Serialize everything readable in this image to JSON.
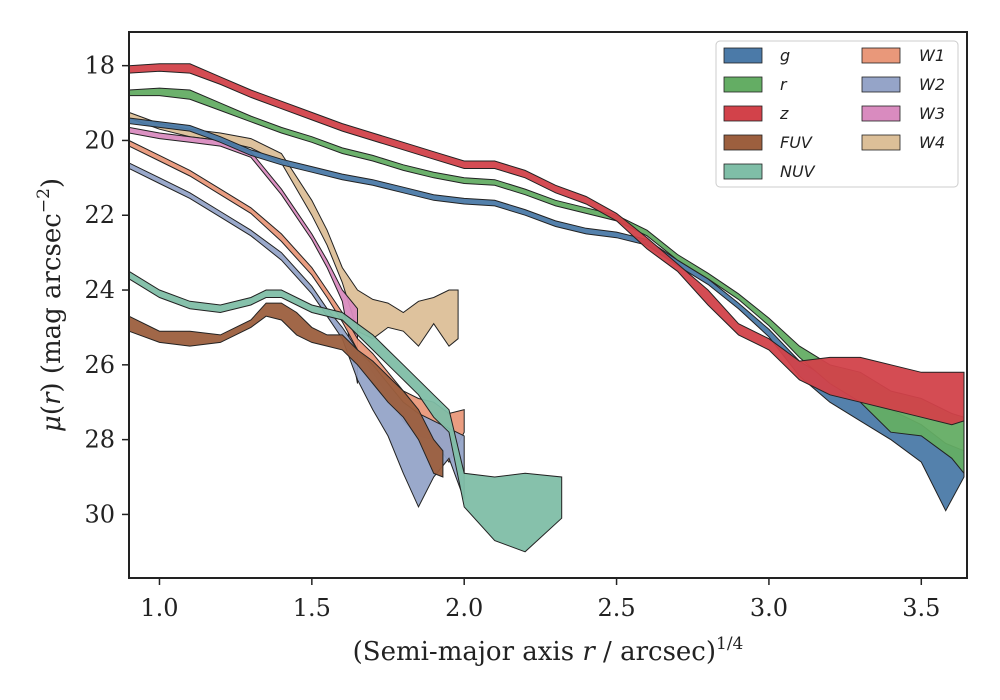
{
  "chart_data": {
    "type": "area",
    "title": "",
    "xlabel": "(Semi-major axis r / arcsec)^1/4",
    "xlabel_parts": {
      "pre": "(Semi-major axis ",
      "var": "r",
      "post": " / arcsec)",
      "sup": "1/4"
    },
    "ylabel": "μ(r) (mag arcsec^−2)",
    "ylabel_parts": {
      "mu": "μ",
      "open": "(",
      "var": "r",
      "close": ") (mag arcsec",
      "sup": "−2",
      "end": ")"
    },
    "xlim": [
      0.9,
      3.65
    ],
    "ylim": [
      31.7,
      17.1
    ],
    "y_inverted": true,
    "xticks": [
      1.0,
      1.5,
      2.0,
      2.5,
      3.0,
      3.5
    ],
    "xtick_labels": [
      "1.0",
      "1.5",
      "2.0",
      "2.5",
      "3.0",
      "3.5"
    ],
    "yticks": [
      18,
      20,
      22,
      24,
      26,
      28,
      30
    ],
    "ytick_labels": [
      "18",
      "20",
      "22",
      "24",
      "26",
      "28",
      "30"
    ],
    "grid": false,
    "legend_placement": "top-right",
    "legend_columns": 2,
    "series": [
      {
        "name": "W4",
        "color": "#dcbf98",
        "x": [
          0.9,
          1.0,
          1.1,
          1.2,
          1.3,
          1.4,
          1.5,
          1.55,
          1.6,
          1.65,
          1.7,
          1.75,
          1.8,
          1.85,
          1.9,
          1.95,
          1.98
        ],
        "y_lo": [
          19.25,
          19.55,
          19.7,
          19.8,
          19.95,
          20.35,
          21.6,
          22.4,
          23.4,
          24.0,
          24.25,
          24.35,
          24.6,
          24.3,
          24.2,
          24.0,
          24.0
        ],
        "y_hi": [
          19.4,
          19.7,
          19.9,
          20.0,
          20.2,
          20.6,
          22.0,
          22.8,
          23.8,
          25.1,
          25.3,
          25.0,
          25.1,
          25.5,
          24.9,
          25.5,
          25.3
        ]
      },
      {
        "name": "W3",
        "color": "#d98bbf",
        "x": [
          0.9,
          1.0,
          1.1,
          1.2,
          1.3,
          1.4,
          1.5,
          1.55,
          1.6,
          1.65
        ],
        "y_lo": [
          19.65,
          19.8,
          19.9,
          20.0,
          20.3,
          21.3,
          22.5,
          23.2,
          24.0,
          24.5
        ],
        "y_hi": [
          19.8,
          19.95,
          20.05,
          20.15,
          20.45,
          21.45,
          22.65,
          23.4,
          24.3,
          26.5
        ]
      },
      {
        "name": "W1",
        "color": "#e9987a",
        "x": [
          0.9,
          1.0,
          1.1,
          1.2,
          1.3,
          1.4,
          1.5,
          1.55,
          1.6,
          1.65,
          1.7,
          1.75,
          1.8,
          1.85,
          1.9,
          1.95,
          2.0
        ],
        "y_lo": [
          20.0,
          20.4,
          20.8,
          21.3,
          21.8,
          22.5,
          23.4,
          24.0,
          24.6,
          25.3,
          25.7,
          26.2,
          26.7,
          26.9,
          27.0,
          27.3,
          27.2
        ],
        "y_hi": [
          20.15,
          20.55,
          20.95,
          21.45,
          21.95,
          22.7,
          23.6,
          24.2,
          24.85,
          25.6,
          26.2,
          26.8,
          27.5,
          27.9,
          28.0,
          28.6,
          27.8
        ]
      },
      {
        "name": "W2",
        "color": "#95a4c8",
        "x": [
          0.9,
          1.0,
          1.1,
          1.2,
          1.3,
          1.4,
          1.5,
          1.55,
          1.6,
          1.65,
          1.7,
          1.75,
          1.8,
          1.85,
          1.9,
          1.95,
          2.0
        ],
        "y_lo": [
          20.6,
          21.0,
          21.4,
          21.9,
          22.4,
          23.0,
          23.9,
          24.5,
          25.0,
          25.6,
          26.0,
          26.5,
          27.0,
          27.3,
          27.5,
          27.7,
          27.9
        ],
        "y_hi": [
          20.75,
          21.15,
          21.55,
          22.05,
          22.55,
          23.2,
          24.1,
          24.7,
          25.3,
          26.4,
          27.2,
          27.9,
          28.9,
          29.8,
          29.0,
          28.5,
          29.6
        ]
      },
      {
        "name": "FUV",
        "color": "#9c5f3e",
        "x": [
          0.9,
          1.0,
          1.1,
          1.2,
          1.3,
          1.35,
          1.4,
          1.45,
          1.5,
          1.55,
          1.6,
          1.65,
          1.7,
          1.75,
          1.8,
          1.85,
          1.9,
          1.93
        ],
        "y_lo": [
          24.7,
          25.1,
          25.1,
          25.2,
          24.8,
          24.35,
          24.35,
          24.6,
          25.0,
          25.2,
          25.2,
          25.6,
          25.9,
          26.3,
          26.7,
          27.2,
          28.0,
          28.3
        ],
        "y_hi": [
          25.1,
          25.4,
          25.5,
          25.4,
          25.0,
          24.7,
          24.8,
          25.2,
          25.4,
          25.5,
          25.6,
          26.0,
          26.5,
          27.0,
          27.4,
          28.0,
          28.9,
          29.0
        ]
      },
      {
        "name": "NUV",
        "color": "#7fbea7",
        "x": [
          0.9,
          1.0,
          1.1,
          1.2,
          1.3,
          1.35,
          1.4,
          1.5,
          1.6,
          1.65,
          1.7,
          1.75,
          1.8,
          1.85,
          1.9,
          1.95,
          2.0,
          2.1,
          2.2,
          2.32
        ],
        "y_lo": [
          23.5,
          24.0,
          24.3,
          24.4,
          24.2,
          24.0,
          24.0,
          24.4,
          24.6,
          24.9,
          25.2,
          25.6,
          26.0,
          26.4,
          26.8,
          27.2,
          28.9,
          29.0,
          28.9,
          29.0
        ],
        "y_hi": [
          23.7,
          24.2,
          24.5,
          24.6,
          24.4,
          24.2,
          24.2,
          24.6,
          24.8,
          25.2,
          25.6,
          26.0,
          26.4,
          26.8,
          27.4,
          27.8,
          29.8,
          30.7,
          31.0,
          30.1
        ]
      },
      {
        "name": "g",
        "color": "#4b7aa8",
        "x": [
          0.9,
          1.0,
          1.1,
          1.2,
          1.3,
          1.4,
          1.5,
          1.6,
          1.7,
          1.8,
          1.9,
          2.0,
          2.1,
          2.2,
          2.3,
          2.4,
          2.5,
          2.6,
          2.7,
          2.8,
          2.9,
          3.0,
          3.1,
          3.2,
          3.3,
          3.4,
          3.5,
          3.58,
          3.64
        ],
        "y_lo": [
          19.4,
          19.5,
          19.6,
          19.9,
          20.25,
          20.5,
          20.7,
          20.9,
          21.05,
          21.25,
          21.45,
          21.55,
          21.6,
          21.85,
          22.15,
          22.35,
          22.45,
          22.65,
          23.2,
          23.7,
          24.35,
          25.05,
          25.9,
          26.4,
          26.8,
          27.2,
          27.6,
          28.1,
          28.3
        ],
        "y_hi": [
          19.55,
          19.65,
          19.75,
          20.05,
          20.4,
          20.65,
          20.85,
          21.05,
          21.2,
          21.4,
          21.6,
          21.7,
          21.75,
          22.0,
          22.3,
          22.5,
          22.6,
          22.8,
          23.35,
          23.85,
          24.5,
          25.25,
          26.3,
          27.0,
          27.5,
          28.0,
          28.6,
          29.9,
          29.0
        ]
      },
      {
        "name": "r",
        "color": "#64ad64",
        "x": [
          0.9,
          1.0,
          1.1,
          1.2,
          1.3,
          1.4,
          1.5,
          1.6,
          1.7,
          1.8,
          1.9,
          2.0,
          2.1,
          2.2,
          2.3,
          2.4,
          2.5,
          2.6,
          2.7,
          2.8,
          2.9,
          3.0,
          3.1,
          3.2,
          3.3,
          3.4,
          3.5,
          3.6,
          3.64
        ],
        "y_lo": [
          18.65,
          18.6,
          18.65,
          19.0,
          19.35,
          19.65,
          19.9,
          20.2,
          20.4,
          20.65,
          20.85,
          21.0,
          21.05,
          21.3,
          21.6,
          21.8,
          22.0,
          22.4,
          23.05,
          23.55,
          24.1,
          24.75,
          25.5,
          26.0,
          26.2,
          26.7,
          26.9,
          27.3,
          27.4
        ],
        "y_hi": [
          18.8,
          18.8,
          18.9,
          19.2,
          19.5,
          19.8,
          20.05,
          20.35,
          20.55,
          20.8,
          21.0,
          21.15,
          21.2,
          21.45,
          21.75,
          21.95,
          22.15,
          22.55,
          23.2,
          23.7,
          24.25,
          24.95,
          25.8,
          26.5,
          27.0,
          27.8,
          27.9,
          28.5,
          28.9
        ]
      },
      {
        "name": "z",
        "color": "#d2424a",
        "x": [
          0.9,
          1.0,
          1.1,
          1.2,
          1.3,
          1.4,
          1.5,
          1.6,
          1.7,
          1.8,
          1.9,
          2.0,
          2.1,
          2.2,
          2.3,
          2.4,
          2.5,
          2.6,
          2.7,
          2.8,
          2.9,
          3.0,
          3.1,
          3.2,
          3.3,
          3.4,
          3.5,
          3.6,
          3.64
        ],
        "y_lo": [
          18.0,
          17.95,
          17.95,
          18.3,
          18.65,
          18.95,
          19.25,
          19.55,
          19.8,
          20.05,
          20.3,
          20.55,
          20.55,
          20.8,
          21.2,
          21.5,
          21.95,
          22.6,
          23.3,
          24.0,
          24.9,
          25.3,
          25.9,
          25.8,
          25.8,
          26.0,
          26.2,
          26.2,
          26.2
        ],
        "y_hi": [
          18.2,
          18.15,
          18.2,
          18.5,
          18.85,
          19.15,
          19.45,
          19.75,
          20.0,
          20.25,
          20.5,
          20.75,
          20.75,
          21.0,
          21.4,
          21.7,
          22.15,
          22.9,
          23.5,
          24.4,
          25.2,
          25.6,
          26.4,
          26.8,
          27.0,
          27.2,
          27.4,
          27.6,
          27.5
        ]
      }
    ],
    "legend": [
      {
        "label": "g",
        "color": "#4b7aa8"
      },
      {
        "label": "r",
        "color": "#64ad64"
      },
      {
        "label": "z",
        "color": "#d2424a"
      },
      {
        "label": "FUV",
        "color": "#9c5f3e"
      },
      {
        "label": "NUV",
        "color": "#7fbea7"
      },
      {
        "label": "W1",
        "color": "#e9987a"
      },
      {
        "label": "W2",
        "color": "#95a4c8"
      },
      {
        "label": "W3",
        "color": "#d98bbf"
      },
      {
        "label": "W4",
        "color": "#dcbf98"
      }
    ]
  }
}
